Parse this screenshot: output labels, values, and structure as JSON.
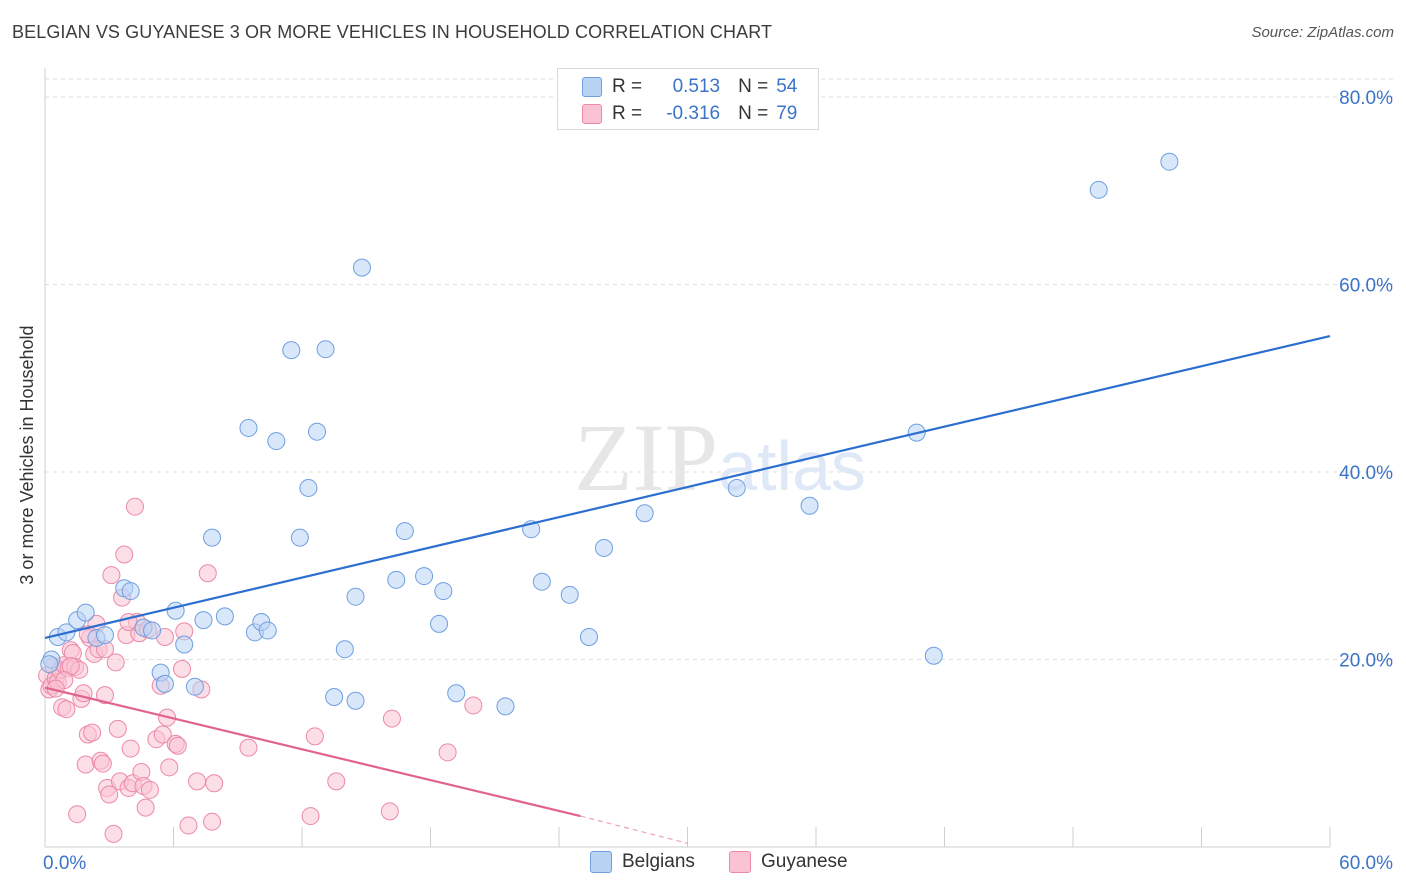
{
  "title": "BELGIAN VS GUYANESE 3 OR MORE VEHICLES IN HOUSEHOLD CORRELATION CHART",
  "source": "Source: ZipAtlas.com",
  "watermark": "ZIPatlas",
  "colors": {
    "blue_fill": "#b9d3f5",
    "blue_stroke": "#6e9fe0",
    "blue_line": "#2c6fcf",
    "pink_fill": "#f9c3d3",
    "pink_stroke": "#ec89a6",
    "pink_line": "#e0648e",
    "axis_text": "#3b74c7"
  },
  "legend": {
    "r_label": "R =",
    "n_label": "N =",
    "belgians_r": "0.513",
    "belgians_n": "54",
    "guyanese_r": "-0.316",
    "guyanese_n": "79"
  },
  "bottom_legend": {
    "belgians": "Belgians",
    "guyanese": "Guyanese"
  },
  "chart_data": {
    "type": "scatter",
    "title": "BELGIAN VS GUYANESE 3 OR MORE VEHICLES IN HOUSEHOLD CORRELATION CHART",
    "xlabel": "",
    "ylabel": "3 or more Vehicles in Household",
    "xlim": [
      0,
      60
    ],
    "ylim": [
      0,
      80
    ],
    "x_tick_labels": [
      "0.0%",
      "60.0%"
    ],
    "y_tick_labels": [
      "20.0%",
      "40.0%",
      "60.0%",
      "80.0%"
    ],
    "y_ticks": [
      20,
      40,
      60,
      80
    ],
    "grid": true,
    "legend_position": "top-center",
    "series": [
      {
        "name": "Belgians",
        "points": [
          [
            0.6,
            22.4
          ],
          [
            1.0,
            22.9
          ],
          [
            1.5,
            24.2
          ],
          [
            1.9,
            25.0
          ],
          [
            2.4,
            22.3
          ],
          [
            2.8,
            22.6
          ],
          [
            3.7,
            27.6
          ],
          [
            4.0,
            27.3
          ],
          [
            4.6,
            23.4
          ],
          [
            5.0,
            23.1
          ],
          [
            5.4,
            18.6
          ],
          [
            5.6,
            17.4
          ],
          [
            6.1,
            25.2
          ],
          [
            6.5,
            21.6
          ],
          [
            7.0,
            17.1
          ],
          [
            7.4,
            24.2
          ],
          [
            7.8,
            33.0
          ],
          [
            8.4,
            24.6
          ],
          [
            9.5,
            44.7
          ],
          [
            9.8,
            22.9
          ],
          [
            10.1,
            24.0
          ],
          [
            10.4,
            23.1
          ],
          [
            10.8,
            43.3
          ],
          [
            11.5,
            53.0
          ],
          [
            11.9,
            33.0
          ],
          [
            12.3,
            38.3
          ],
          [
            12.7,
            44.3
          ],
          [
            13.1,
            53.1
          ],
          [
            13.5,
            16.0
          ],
          [
            14.0,
            21.1
          ],
          [
            14.5,
            26.7
          ],
          [
            14.5,
            15.6
          ],
          [
            14.8,
            61.8
          ],
          [
            16.4,
            28.5
          ],
          [
            16.8,
            33.7
          ],
          [
            17.7,
            28.9
          ],
          [
            18.4,
            23.8
          ],
          [
            18.6,
            27.3
          ],
          [
            19.2,
            16.4
          ],
          [
            21.5,
            15.0
          ],
          [
            22.7,
            33.9
          ],
          [
            23.2,
            28.3
          ],
          [
            24.5,
            26.9
          ],
          [
            25.4,
            22.4
          ],
          [
            26.1,
            31.9
          ],
          [
            28.0,
            35.6
          ],
          [
            32.3,
            38.3
          ],
          [
            35.7,
            36.4
          ],
          [
            40.7,
            44.2
          ],
          [
            41.5,
            20.4
          ],
          [
            49.2,
            70.1
          ],
          [
            52.5,
            73.1
          ],
          [
            0.3,
            20.0
          ],
          [
            0.2,
            19.5
          ]
        ],
        "trend": {
          "x": [
            0,
            60
          ],
          "y": [
            22.3,
            54.5
          ]
        }
      },
      {
        "name": "Guyanese",
        "points": [
          [
            0.1,
            18.3
          ],
          [
            0.2,
            16.8
          ],
          [
            0.3,
            17.2
          ],
          [
            0.4,
            19.3
          ],
          [
            0.5,
            18.0
          ],
          [
            0.6,
            17.6
          ],
          [
            0.7,
            18.9
          ],
          [
            0.8,
            14.9
          ],
          [
            0.9,
            19.4
          ],
          [
            1.0,
            14.7
          ],
          [
            1.1,
            19.1
          ],
          [
            1.2,
            21.0
          ],
          [
            1.3,
            20.7
          ],
          [
            1.4,
            19.2
          ],
          [
            1.5,
            3.5
          ],
          [
            1.6,
            18.9
          ],
          [
            1.7,
            15.8
          ],
          [
            1.8,
            16.4
          ],
          [
            1.9,
            8.8
          ],
          [
            2.0,
            12.0
          ],
          [
            2.1,
            22.3
          ],
          [
            2.2,
            12.2
          ],
          [
            2.3,
            20.6
          ],
          [
            2.4,
            23.8
          ],
          [
            2.5,
            21.1
          ],
          [
            2.6,
            9.2
          ],
          [
            2.7,
            8.9
          ],
          [
            2.8,
            16.2
          ],
          [
            2.9,
            6.3
          ],
          [
            3.0,
            5.6
          ],
          [
            3.1,
            29.0
          ],
          [
            3.2,
            1.4
          ],
          [
            3.3,
            19.7
          ],
          [
            3.4,
            12.6
          ],
          [
            3.5,
            7.0
          ],
          [
            3.6,
            26.6
          ],
          [
            3.7,
            31.2
          ],
          [
            3.8,
            22.6
          ],
          [
            3.9,
            6.3
          ],
          [
            4.0,
            10.5
          ],
          [
            4.1,
            6.8
          ],
          [
            4.2,
            36.3
          ],
          [
            4.3,
            24.0
          ],
          [
            4.4,
            22.8
          ],
          [
            4.5,
            8.0
          ],
          [
            4.6,
            6.5
          ],
          [
            4.7,
            4.2
          ],
          [
            4.8,
            23.2
          ],
          [
            4.9,
            6.1
          ],
          [
            5.2,
            11.5
          ],
          [
            5.4,
            17.2
          ],
          [
            5.5,
            12.0
          ],
          [
            5.7,
            13.8
          ],
          [
            5.8,
            8.5
          ],
          [
            6.1,
            11.0
          ],
          [
            6.2,
            10.8
          ],
          [
            6.4,
            19.0
          ],
          [
            6.7,
            2.3
          ],
          [
            7.1,
            7.0
          ],
          [
            7.3,
            16.8
          ],
          [
            7.8,
            2.7
          ],
          [
            7.9,
            6.8
          ],
          [
            7.6,
            29.2
          ],
          [
            9.5,
            10.6
          ],
          [
            12.4,
            3.3
          ],
          [
            12.6,
            11.8
          ],
          [
            13.6,
            7.0
          ],
          [
            16.2,
            13.7
          ],
          [
            16.1,
            3.8
          ],
          [
            18.8,
            10.1
          ],
          [
            20.0,
            15.1
          ],
          [
            2.0,
            22.7
          ],
          [
            2.8,
            21.1
          ],
          [
            1.2,
            19.3
          ],
          [
            0.9,
            17.8
          ],
          [
            0.5,
            16.9
          ],
          [
            3.9,
            24.0
          ],
          [
            6.5,
            23.0
          ],
          [
            5.6,
            22.4
          ]
        ],
        "trend": {
          "x": [
            0,
            25
          ],
          "y": [
            17.0,
            3.3
          ]
        },
        "trend_dashed": {
          "x": [
            25,
            30
          ],
          "y": [
            3.3,
            0.4
          ]
        }
      }
    ]
  }
}
